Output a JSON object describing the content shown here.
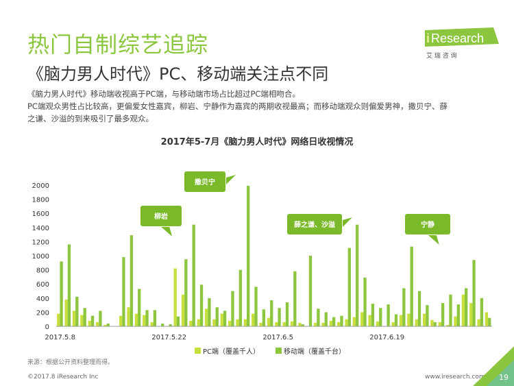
{
  "header": {
    "title": "热门自制综艺追踪",
    "subtitle": "《脑力男人时代》PC、移动端关注点不同"
  },
  "logo": {
    "brand_i": "i",
    "brand_rest": "Research",
    "tagline": "艾 瑞 咨 询"
  },
  "description": [
    "《脑力男人时代》移动端收视高于PC端，与移动端市场占比超过PC端相吻合。",
    "PC端观众男性占比较高，更偏爱女性嘉宾，柳岩、宁静作为嘉宾的两期收视最高；而移动端观众则偏爱男神，撒贝宁、薛",
    "之谦、沙溢的到来吸引了最多观众。"
  ],
  "colors": {
    "accent": "#8cc63f",
    "pc": "#c8de3c",
    "mobile": "#8cc63f",
    "callout": "#7ab929"
  },
  "chart_data": {
    "type": "bar",
    "title": "2017年5-7月《脑力男人时代》网络日收视情况",
    "ylim": [
      0,
      2000
    ],
    "yticks": [
      0,
      200,
      400,
      600,
      800,
      1000,
      1200,
      1400,
      1600,
      1800,
      2000
    ],
    "x_tick_labels": [
      {
        "index": 0,
        "label": "2017.5.8"
      },
      {
        "index": 14,
        "label": "2017.5.22"
      },
      {
        "index": 28,
        "label": "2017.6.5"
      },
      {
        "index": 42,
        "label": "2017.6.19"
      }
    ],
    "days": 56,
    "series": [
      {
        "name": "PC端（覆盖千人）",
        "color": "#c8de3c",
        "values": [
          180,
          380,
          220,
          160,
          80,
          60,
          20,
          0,
          150,
          270,
          180,
          160,
          60,
          0,
          0,
          820,
          450,
          80,
          100,
          250,
          100,
          180,
          80,
          100,
          100,
          180,
          50,
          120,
          60,
          60,
          70,
          50,
          0,
          50,
          50,
          80,
          60,
          100,
          130,
          200,
          160,
          70,
          0,
          60,
          160,
          180,
          100,
          180,
          90,
          60,
          20,
          140,
          450,
          330,
          100,
          200
        ]
      },
      {
        "name": "移动端（覆盖千台）",
        "color": "#8cc63f",
        "values": [
          920,
          1160,
          420,
          260,
          150,
          220,
          40,
          0,
          980,
          1290,
          530,
          230,
          230,
          40,
          30,
          140,
          950,
          1440,
          590,
          400,
          270,
          220,
          500,
          800,
          1990,
          560,
          240,
          370,
          260,
          340,
          780,
          30,
          1000,
          250,
          200,
          130,
          150,
          1110,
          1440,
          690,
          320,
          260,
          310,
          170,
          540,
          1130,
          500,
          300,
          60,
          330,
          450,
          310,
          540,
          940,
          400,
          120
        ]
      }
    ],
    "callouts": [
      {
        "label": "柳岩",
        "target_index": 15
      },
      {
        "label": "撒贝宁",
        "target_index": 24
      },
      {
        "label": "薛之谦、沙溢",
        "target_index": 37
      },
      {
        "label": "宁静",
        "target_index": 46
      }
    ]
  },
  "footer": {
    "source": "来源：根据公开资料整理而得。",
    "copyright": "©2017.8 iResearch Inc",
    "site": "www.iresearch.com.cn",
    "page": "19"
  }
}
